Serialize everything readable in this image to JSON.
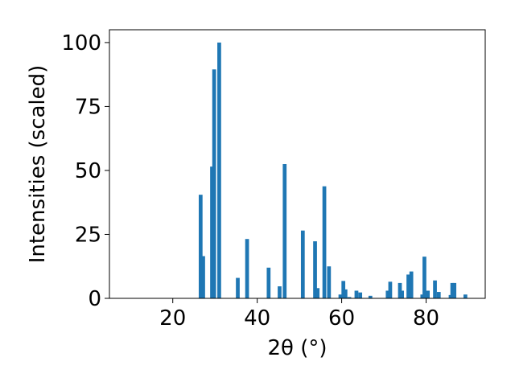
{
  "chart_data": {
    "type": "bar",
    "xlabel": "2θ (°)",
    "ylabel": "Intensities (scaled)",
    "xlim": [
      5,
      94
    ],
    "ylim": [
      0,
      105
    ],
    "x_ticks": [
      20,
      40,
      60,
      80
    ],
    "x_tick_labels": [
      "20",
      "40",
      "60",
      "80"
    ],
    "y_ticks": [
      0,
      25,
      50,
      75,
      100
    ],
    "y_tick_labels": [
      "0",
      "25",
      "50",
      "75",
      "100"
    ],
    "grid": false,
    "bar_color": "#1f77b4",
    "bar_width": 0.9,
    "x": [
      26.6,
      27.2,
      29.3,
      29.8,
      31.0,
      35.4,
      37.6,
      42.7,
      45.3,
      46.5,
      50.8,
      53.7,
      54.3,
      55.9,
      57.0,
      59.7,
      60.4,
      60.9,
      61.8,
      63.5,
      64.4,
      66.8,
      70.9,
      71.5,
      73.8,
      74.3,
      75.8,
      76.5,
      79.1,
      79.6,
      80.4,
      82.1,
      83.0,
      85.8,
      86.2,
      86.7,
      89.3
    ],
    "values": [
      40.5,
      16.5,
      51.5,
      89.5,
      100,
      8,
      23.2,
      12,
      4.7,
      52.5,
      26.5,
      22.3,
      4,
      43.8,
      12.5,
      1.5,
      6.8,
      3.5,
      0.5,
      3,
      2.3,
      1,
      3,
      6.5,
      6,
      3,
      9.3,
      10.5,
      1.5,
      16.3,
      3,
      7,
      2.5,
      1.3,
      6,
      6,
      1.5
    ]
  }
}
